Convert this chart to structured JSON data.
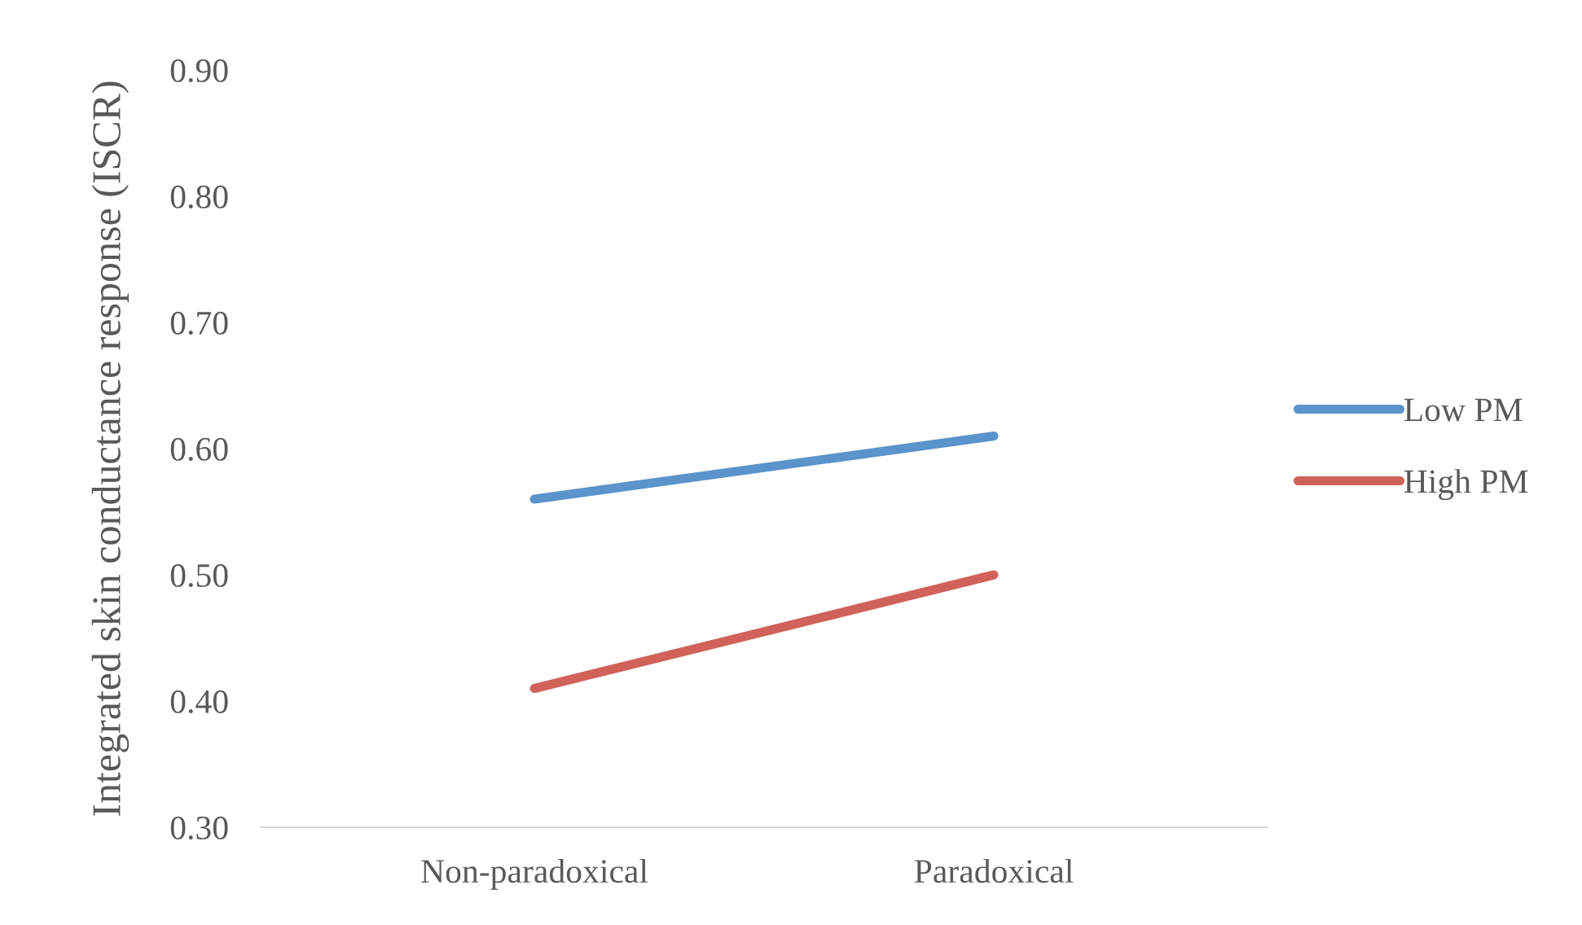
{
  "chart_data": {
    "type": "line",
    "ylabel": "Integrated skin conductance response (ISCR)",
    "categories": [
      "Non-paradoxical",
      "Paradoxical"
    ],
    "series": [
      {
        "name": "Low PM",
        "color": "#5b93cb",
        "values": [
          0.56,
          0.61
        ]
      },
      {
        "name": "High PM",
        "color": "#d0625a",
        "values": [
          0.41,
          0.5
        ]
      }
    ],
    "ylim": [
      0.3,
      0.9
    ],
    "yticks": [
      {
        "value": 0.3,
        "label": "0.30"
      },
      {
        "value": 0.4,
        "label": "0.40"
      },
      {
        "value": 0.5,
        "label": "0.50"
      },
      {
        "value": 0.6,
        "label": "0.60"
      },
      {
        "value": 0.7,
        "label": "0.70"
      },
      {
        "value": 0.8,
        "label": "0.80"
      },
      {
        "value": 0.9,
        "label": "0.90"
      }
    ],
    "grid": false,
    "legend": "right"
  }
}
